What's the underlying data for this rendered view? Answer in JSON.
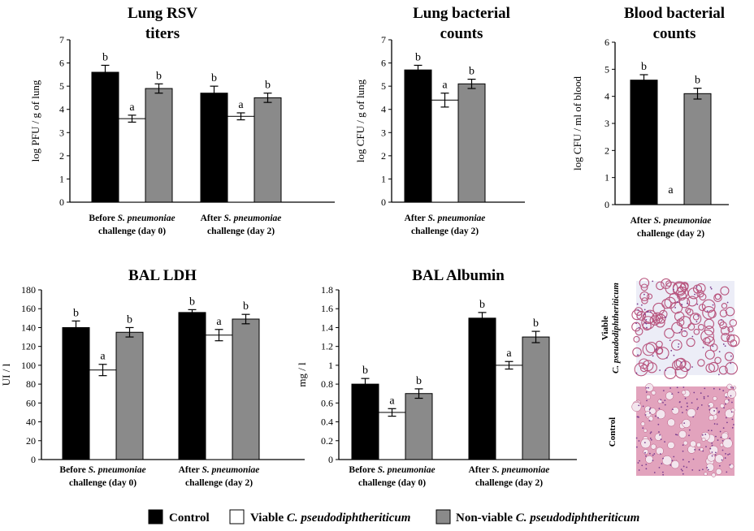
{
  "colors": {
    "control": "#000000",
    "viable": "#ffffff",
    "nonviable": "#8a8a8a",
    "tissue": "#e2a3bd",
    "tissue_dark": "#b8557e",
    "tissue_bg": "#ecedf7"
  },
  "legend": [
    {
      "key": "control",
      "prefix": "Control",
      "italic": ""
    },
    {
      "key": "viable",
      "prefix": "Viable ",
      "italic": "C. pseudodiphtheriticum"
    },
    {
      "key": "nonviable",
      "prefix": "Non-viable ",
      "italic": "C. pseudodiphtheriticum"
    }
  ],
  "histology": {
    "top_label_line1": "Viable",
    "top_label_line2": "C. pseudodiphtheriticum",
    "bottom_label": "Control"
  },
  "chart_data": [
    {
      "id": "lung-rsv",
      "type": "bar",
      "title": [
        "Lung RSV",
        "titers"
      ],
      "ylabel": "log PFU / g of lung",
      "ylim": [
        0,
        7
      ],
      "yticks": [
        0,
        1,
        2,
        3,
        4,
        5,
        6,
        7
      ],
      "categories": [
        {
          "pre": "Before ",
          "it": "S. pneumoniae",
          "line2": "challenge (day 0)"
        },
        {
          "pre": "After ",
          "it": "S. pneumoniae",
          "line2": "challenge (day 2)"
        }
      ],
      "series": [
        {
          "name": "Control",
          "key": "control",
          "values": [
            5.6,
            4.7
          ],
          "errors": [
            0.3,
            0.3
          ],
          "sig": [
            "b",
            "b"
          ]
        },
        {
          "name": "Viable C. pseudodiphtheriticum",
          "key": "viable",
          "values": [
            3.6,
            3.7
          ],
          "errors": [
            0.15,
            0.15
          ],
          "sig": [
            "a",
            "a"
          ]
        },
        {
          "name": "Non-viable C. pseudodiphtheriticum",
          "key": "nonviable",
          "values": [
            4.9,
            4.5
          ],
          "errors": [
            0.2,
            0.2
          ],
          "sig": [
            "b",
            "b"
          ]
        }
      ]
    },
    {
      "id": "lung-bacterial",
      "type": "bar",
      "title": [
        "Lung bacterial",
        "counts"
      ],
      "ylabel": "log CFU / g of lung",
      "ylim": [
        0,
        7
      ],
      "yticks": [
        0,
        1,
        2,
        3,
        4,
        5,
        6,
        7
      ],
      "categories": [
        {
          "pre": "After ",
          "it": "S. pneumoniae",
          "line2": "challenge (day 2)"
        }
      ],
      "series": [
        {
          "name": "Control",
          "key": "control",
          "values": [
            5.7
          ],
          "errors": [
            0.2
          ],
          "sig": [
            "b"
          ]
        },
        {
          "name": "Viable C. pseudodiphtheriticum",
          "key": "viable",
          "values": [
            4.4
          ],
          "errors": [
            0.3
          ],
          "sig": [
            "a"
          ]
        },
        {
          "name": "Non-viable C. pseudodiphtheriticum",
          "key": "nonviable",
          "values": [
            5.1
          ],
          "errors": [
            0.2
          ],
          "sig": [
            "b"
          ]
        }
      ]
    },
    {
      "id": "blood-bacterial",
      "type": "bar",
      "title": [
        "Blood bacterial",
        "counts"
      ],
      "ylabel": "log CFU / ml of blood",
      "ylim": [
        0,
        6
      ],
      "yticks": [
        0,
        1,
        2,
        3,
        4,
        5,
        6
      ],
      "categories": [
        {
          "pre": "After ",
          "it": "S. pneumoniae",
          "line2": "challenge (day 2)"
        }
      ],
      "series": [
        {
          "name": "Control",
          "key": "control",
          "values": [
            4.6
          ],
          "errors": [
            0.2
          ],
          "sig": [
            "b"
          ]
        },
        {
          "name": "Viable C. pseudodiphtheriticum",
          "key": "viable",
          "values": [
            0
          ],
          "errors": [
            0
          ],
          "sig": [
            "a"
          ]
        },
        {
          "name": "Non-viable C. pseudodiphtheriticum",
          "key": "nonviable",
          "values": [
            4.1
          ],
          "errors": [
            0.2
          ],
          "sig": [
            "b"
          ]
        }
      ]
    },
    {
      "id": "bal-ldh",
      "type": "bar",
      "title": [
        "BAL LDH"
      ],
      "ylabel": "UI / l",
      "ylim": [
        0,
        180
      ],
      "yticks": [
        0,
        20,
        40,
        60,
        80,
        100,
        120,
        140,
        160,
        180
      ],
      "categories": [
        {
          "pre": "Before ",
          "it": "S. pneumoniae",
          "line2": "challenge (day 0)"
        },
        {
          "pre": "After ",
          "it": "S. pneumoniae",
          "line2": "challenge (day 2)"
        }
      ],
      "series": [
        {
          "name": "Control",
          "key": "control",
          "values": [
            140,
            156
          ],
          "errors": [
            7,
            3
          ],
          "sig": [
            "b",
            "b"
          ]
        },
        {
          "name": "Viable C. pseudodiphtheriticum",
          "key": "viable",
          "values": [
            95,
            132
          ],
          "errors": [
            6,
            6
          ],
          "sig": [
            "a",
            "a"
          ]
        },
        {
          "name": "Non-viable C. pseudodiphtheriticum",
          "key": "nonviable",
          "values": [
            135,
            149
          ],
          "errors": [
            5,
            5
          ],
          "sig": [
            "b",
            "b"
          ]
        }
      ]
    },
    {
      "id": "bal-albumin",
      "type": "bar",
      "title": [
        "BAL Albumin"
      ],
      "ylabel": "mg / l",
      "ylim": [
        0,
        1.8
      ],
      "yticks": [
        "0",
        "0.2",
        "0.4",
        "0.6",
        "0.8",
        "1",
        "1.2",
        "1.4",
        "1.6",
        "1.8"
      ],
      "categories": [
        {
          "pre": "Before ",
          "it": "S. pneumoniae",
          "line2": "challenge (day 0)"
        },
        {
          "pre": "After ",
          "it": "S. pneumoniae",
          "line2": "challenge (day 2)"
        }
      ],
      "series": [
        {
          "name": "Control",
          "key": "control",
          "values": [
            0.8,
            1.5
          ],
          "errors": [
            0.06,
            0.06
          ],
          "sig": [
            "b",
            "b"
          ]
        },
        {
          "name": "Viable C. pseudodiphtheriticum",
          "key": "viable",
          "values": [
            0.5,
            1.0
          ],
          "errors": [
            0.04,
            0.04
          ],
          "sig": [
            "a",
            "a"
          ]
        },
        {
          "name": "Non-viable C. pseudodiphtheriticum",
          "key": "nonviable",
          "values": [
            0.7,
            1.3
          ],
          "errors": [
            0.05,
            0.06
          ],
          "sig": [
            "b",
            "b"
          ]
        }
      ]
    }
  ]
}
